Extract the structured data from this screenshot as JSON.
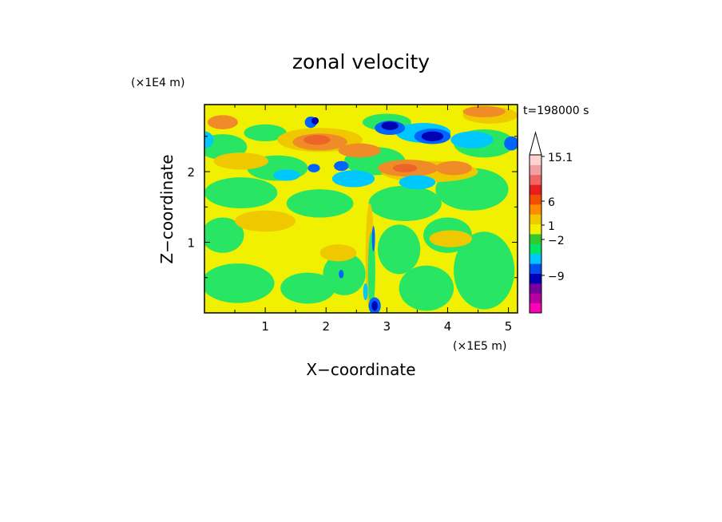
{
  "chart_data": {
    "type": "heatmap",
    "title": "zonal velocity",
    "xlabel": "X−coordinate",
    "ylabel": "Z−coordinate",
    "x_scale_label": "(×1E5 m)",
    "y_scale_label": "(×1E4 m)",
    "time_label": "t=198000 s",
    "xlim": [
      0,
      5.15
    ],
    "ylim": [
      0,
      2.95
    ],
    "x_ticks": [
      1,
      2,
      3,
      4,
      5
    ],
    "x_tick_labels": [
      "1",
      "2",
      "3",
      "4",
      "5"
    ],
    "y_ticks": [
      1,
      2
    ],
    "y_tick_labels": [
      "1",
      "2"
    ],
    "colorbar": {
      "labels": [
        "15.1",
        "6",
        "1",
        "−2",
        "−9"
      ],
      "levels": [
        {
          "color": "#ff00b4"
        },
        {
          "color": "#b400a0"
        },
        {
          "color": "#78009c"
        },
        {
          "color": "#0000b4"
        },
        {
          "color": "#0050f0"
        },
        {
          "color": "#00c8ff"
        },
        {
          "color": "#00e664"
        },
        {
          "color": "#32c832"
        },
        {
          "color": "#f0f000"
        },
        {
          "color": "#f0c800"
        },
        {
          "color": "#ff8c00"
        },
        {
          "color": "#f05000"
        },
        {
          "color": "#e61e1e"
        },
        {
          "color": "#f06464"
        },
        {
          "color": "#f0a0a0"
        },
        {
          "color": "#ffd2d2"
        }
      ]
    },
    "field_colors": {
      "yellow": "#f0f000",
      "light_orange": "#f0c800",
      "orange": "#f08c28",
      "red_orange": "#ec6428",
      "green": "#28e664",
      "cyan": "#00c8ff",
      "blue": "#0064ff",
      "dark_blue": "#0000b4"
    }
  }
}
